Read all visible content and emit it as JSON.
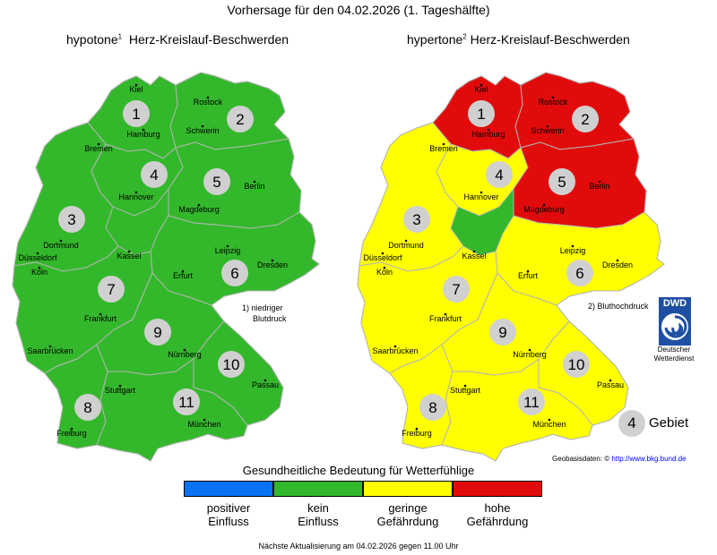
{
  "header": {
    "title": "Vorhersage für den 04.02.2026 (1. Tageshälfte)"
  },
  "maps": [
    {
      "id": "hypotone",
      "label_prefix": "hypotone",
      "label_sup": "1",
      "label_suffix": "Herz-Kreislauf-Beschwerden",
      "region_levels": {
        "1": "kein Einfluss",
        "2": "kein Einfluss",
        "3": "kein Einfluss",
        "4": "kein Einfluss",
        "5": "kein Einfluss",
        "6": "kein Einfluss",
        "7": "kein Einfluss",
        "8": "kein Einfluss",
        "9": "kein Einfluss",
        "10": "kein Einfluss",
        "11": "kein Einfluss"
      },
      "footnote_line1": "1) niedriger",
      "footnote_line2": "Blutdruck"
    },
    {
      "id": "hypertone",
      "label_prefix": "hypertone",
      "label_sup": "2",
      "label_suffix": "Herz-Kreislauf-Beschwerden",
      "region_levels": {
        "1": "hohe Gefährdung",
        "2": "hohe Gefährdung",
        "3": "geringe Gefährdung",
        "4": "geringe Gefährdung",
        "5": "hohe Gefährdung",
        "6": "geringe Gefährdung",
        "7": "geringe Gefährdung",
        "8": "geringe Gefährdung",
        "9": "geringe Gefährdung",
        "10": "geringe Gefährdung",
        "11": "geringe Gefährdung"
      },
      "footnote_line1": "2) Bluthochdruck"
    }
  ],
  "regions": [
    "1",
    "2",
    "3",
    "4",
    "5",
    "6",
    "7",
    "8",
    "9",
    "10",
    "11"
  ],
  "cities": [
    "Kiel",
    "Rostock",
    "Hamburg",
    "Schwerin",
    "Bremen",
    "Hannover",
    "Berlin",
    "Magdeburg",
    "Dortmund",
    "Düsseldorf",
    "Köln",
    "Kassel",
    "Leipzig",
    "Dresden",
    "Erfurt",
    "Frankfurt",
    "Saarbrücken",
    "Nürnberg",
    "Passau",
    "Stuttgart",
    "München",
    "Freiburg"
  ],
  "legend": {
    "title": "Gesundheitliche Bedeutung für Wetterfühlige",
    "items": [
      {
        "line1": "positiver",
        "line2": "Einfluss",
        "color": "#0a73f3"
      },
      {
        "line1": "kein",
        "line2": "Einfluss",
        "color": "#33b82b"
      },
      {
        "line1": "geringe",
        "line2": "Gefährdung",
        "color": "#ffff00"
      },
      {
        "line1": "hohe",
        "line2": "Gefährdung",
        "color": "#e20b0b"
      }
    ]
  },
  "area_key": {
    "number": "4",
    "label": "Gebiet"
  },
  "dwd": {
    "logo_text": "DWD",
    "line1": "Deutscher",
    "line2": "Wetterdienst"
  },
  "geodata": {
    "label": "Geobasisdaten: ©",
    "link": "http://www.bkg.bund.de"
  },
  "footer": {
    "text": "Nächste Aktualisierung am 04.02.2026 gegen 11.00 Uhr"
  }
}
